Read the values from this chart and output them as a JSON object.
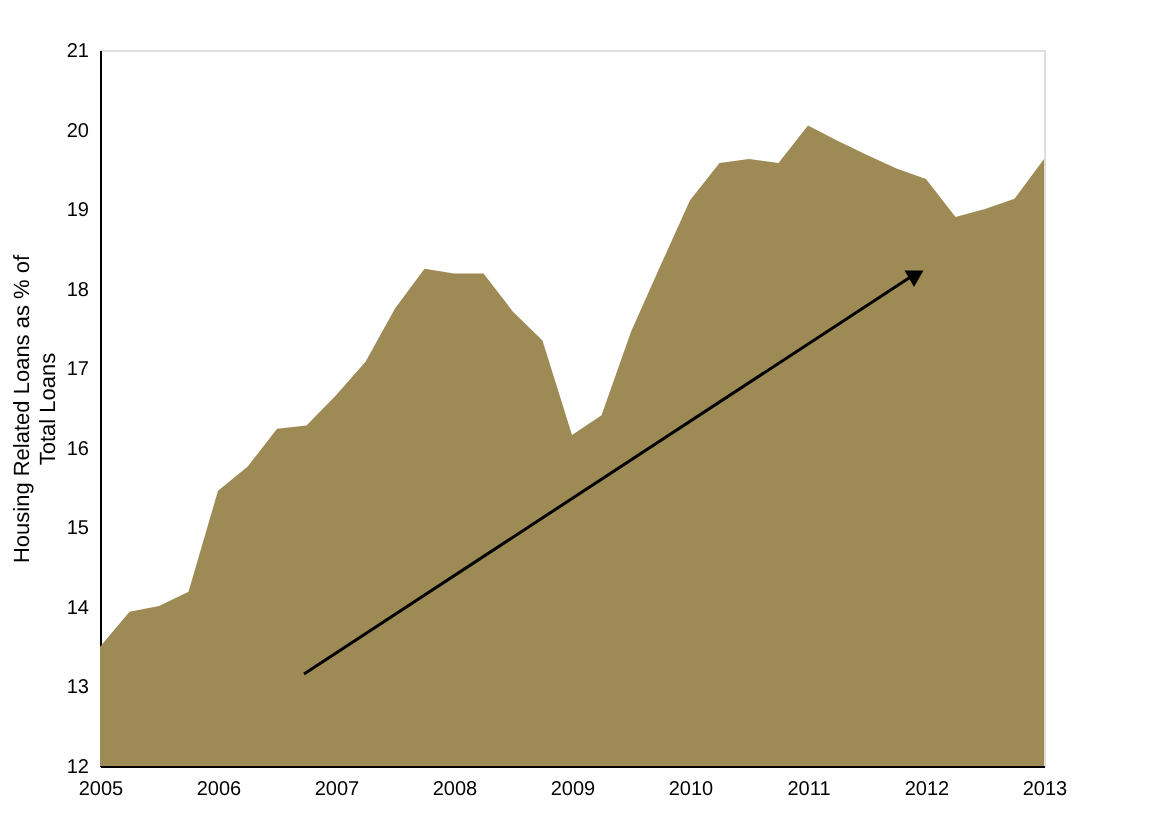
{
  "chart_data": {
    "type": "area",
    "ylabel": "Housing Related Loans as % of Total Loans",
    "x": [
      2005,
      2005.25,
      2005.5,
      2005.75,
      2006,
      2006.25,
      2006.5,
      2006.75,
      2007,
      2007.25,
      2007.5,
      2007.75,
      2008,
      2008.25,
      2008.5,
      2008.75,
      2009,
      2009.25,
      2009.5,
      2009.75,
      2010,
      2010.25,
      2010.5,
      2010.75,
      2011,
      2011.25,
      2011.5,
      2011.75,
      2012,
      2012.25,
      2012.5,
      2012.75,
      2013
    ],
    "series": [
      {
        "color": "#9e8a55",
        "values": [
          13.5,
          13.94,
          14.01,
          14.19,
          15.46,
          15.76,
          16.24,
          16.28,
          16.66,
          17.08,
          17.75,
          18.25,
          18.19,
          18.19,
          17.71,
          17.35,
          16.16,
          16.41,
          17.46,
          18.29,
          19.11,
          19.58,
          19.63,
          19.58,
          20.05,
          19.86,
          19.68,
          19.51,
          19.38,
          18.9,
          19.0,
          19.13,
          19.63
        ]
      }
    ],
    "xlim": [
      2005,
      2013
    ],
    "xticks": [
      2005,
      2006,
      2007,
      2008,
      2009,
      2010,
      2011,
      2012,
      2013
    ],
    "ylim": [
      12,
      21
    ],
    "yticks": [
      12,
      13,
      14,
      15,
      16,
      17,
      18,
      19,
      20,
      21
    ],
    "grid": false
  }
}
